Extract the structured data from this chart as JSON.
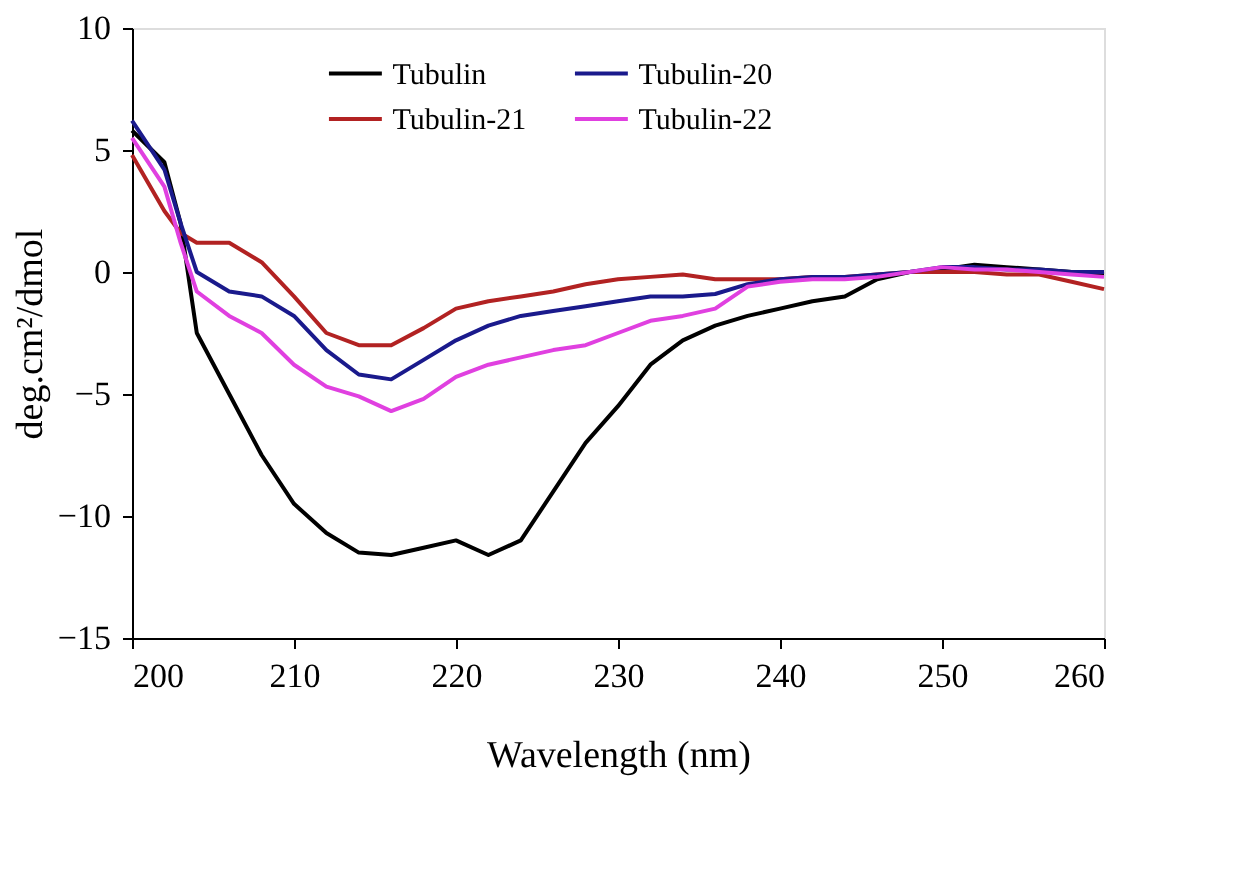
{
  "chart_data": {
    "type": "line",
    "xlabel": "Wavelength (nm)",
    "ylabel": "deg.cm²/dmol",
    "xlim": [
      200,
      260
    ],
    "xticks": [
      200,
      210,
      220,
      230,
      240,
      250,
      260
    ],
    "ylim": [
      -15,
      10
    ],
    "yticks": [
      -15,
      -10,
      -5,
      0,
      5,
      10
    ],
    "grid": false,
    "legend": "top",
    "marker": "none",
    "line_style": "solid",
    "x": [
      200,
      202,
      203,
      204,
      206,
      208,
      210,
      212,
      214,
      216,
      218,
      220,
      222,
      224,
      226,
      228,
      230,
      232,
      234,
      236,
      238,
      240,
      242,
      244,
      246,
      248,
      250,
      252,
      254,
      256,
      258,
      260
    ],
    "series": [
      {
        "name": "Tubulin",
        "color": "#000000",
        "values": [
          5.8,
          4.5,
          2,
          -2.5,
          -5,
          -7.5,
          -9.5,
          -10.7,
          -11.5,
          -11.6,
          -11.3,
          -11,
          -11.6,
          -11,
          -9,
          -7,
          -5.5,
          -3.8,
          -2.8,
          -2.2,
          -1.8,
          -1.5,
          -1.2,
          -1,
          -0.3,
          0,
          0.1,
          0.3,
          0.2,
          0.1,
          0,
          -0.1
        ]
      },
      {
        "name": "Tubulin-21",
        "color": "#b22222",
        "values": [
          4.8,
          2.5,
          1.6,
          1.2,
          1.2,
          0.4,
          -1,
          -2.5,
          -3,
          -3,
          -2.3,
          -1.5,
          -1.2,
          -1,
          -0.8,
          -0.5,
          -0.3,
          -0.2,
          -0.1,
          -0.3,
          -0.3,
          -0.3,
          -0.2,
          -0.2,
          -0.1,
          0,
          0,
          0,
          -0.1,
          -0.1,
          -0.4,
          -0.7
        ]
      },
      {
        "name": "Tubulin-20",
        "color": "#1a1a8c",
        "values": [
          6.2,
          4.2,
          2,
          0,
          -0.8,
          -1,
          -1.8,
          -3.2,
          -4.2,
          -4.4,
          -3.6,
          -2.8,
          -2.2,
          -1.8,
          -1.6,
          -1.4,
          -1.2,
          -1,
          -1,
          -0.9,
          -0.5,
          -0.3,
          -0.2,
          -0.2,
          -0.1,
          0,
          0.2,
          0.2,
          0.1,
          0.1,
          0,
          0
        ]
      },
      {
        "name": "Tubulin-22",
        "color": "#e040e0",
        "values": [
          5.5,
          3.5,
          1.2,
          -0.8,
          -1.8,
          -2.5,
          -3.8,
          -4.7,
          -5.1,
          -5.7,
          -5.2,
          -4.3,
          -3.8,
          -3.5,
          -3.2,
          -3,
          -2.5,
          -2,
          -1.8,
          -1.5,
          -0.6,
          -0.4,
          -0.3,
          -0.3,
          -0.2,
          0,
          0.2,
          0.1,
          0.1,
          0,
          -0.1,
          -0.2
        ]
      }
    ]
  }
}
